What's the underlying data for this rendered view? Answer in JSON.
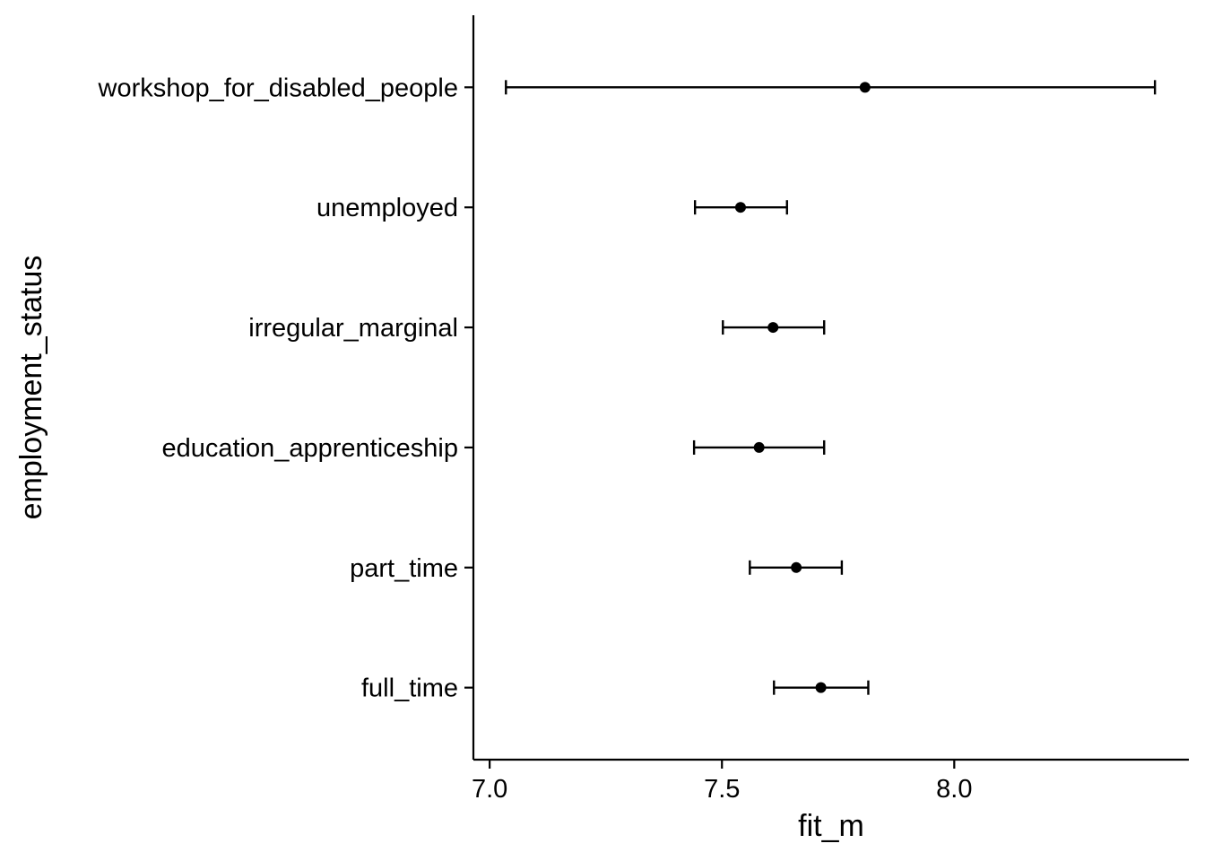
{
  "chart_data": {
    "type": "scatter",
    "subtype": "pointrange",
    "orientation": "horizontal",
    "title": "",
    "xlabel": "fit_m",
    "ylabel": "employment_status",
    "xlim": [
      6.965,
      8.505
    ],
    "xticks": [
      7.0,
      7.5,
      8.0
    ],
    "xtick_labels": [
      "7.0",
      "7.5",
      "8.0"
    ],
    "grid": false,
    "legend": "none",
    "categories": [
      "full_time",
      "part_time",
      "education_apprenticeship",
      "irregular_marginal",
      "unemployed",
      "workshop_for_disabled_people"
    ],
    "series": [
      {
        "values": [
          7.713,
          7.66,
          7.58,
          7.61,
          7.54,
          7.808
        ],
        "lower": [
          7.612,
          7.56,
          7.44,
          7.502,
          7.442,
          7.035
        ],
        "upper": [
          7.815,
          7.758,
          7.72,
          7.72,
          7.64,
          8.432
        ]
      }
    ],
    "colors": {
      "point": "#000000",
      "errorbar": "#000000",
      "axis": "#000000",
      "background": "#ffffff"
    }
  }
}
